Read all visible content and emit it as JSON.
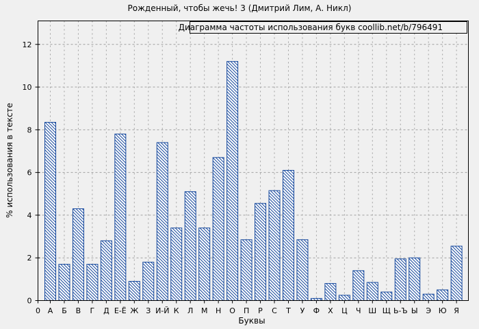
{
  "page": {
    "background": "#f0f0f0"
  },
  "colors": {
    "bar_outline": "#17499d",
    "bar_fill": "#ffffff",
    "grid": "#a0a0a0",
    "axis": "#000000",
    "text": "#000000"
  },
  "legend": {
    "label": "Диаграмма частоты использования букв coollib.net/b/796491",
    "position": "top-right",
    "boxed": true
  },
  "chart_data": {
    "type": "bar",
    "title": "Рожденный, чтобы жечь! 3 (Дмитрий Лим, А. Никл)",
    "xlabel": "Буквы",
    "ylabel": "% использования в тексте",
    "legend_label": "Диаграмма частоты использования букв coollib.net/b/796491",
    "legend_position": "top-right",
    "grid": true,
    "hatch": "diagonal-backslash",
    "origin_tick_label": "0",
    "categories": [
      "А",
      "Б",
      "В",
      "Г",
      "Д",
      "Е-Ё",
      "Ж",
      "З",
      "И-Й",
      "К",
      "Л",
      "М",
      "Н",
      "О",
      "П",
      "Р",
      "С",
      "Т",
      "У",
      "Ф",
      "Х",
      "Ц",
      "Ч",
      "Ш",
      "Щ",
      "Ь-Ъ",
      "Ы",
      "Э",
      "Ю",
      "Я"
    ],
    "values": [
      8.35,
      1.7,
      4.3,
      1.7,
      2.8,
      7.8,
      0.9,
      1.8,
      7.4,
      3.4,
      5.1,
      3.4,
      6.7,
      11.2,
      2.85,
      4.55,
      5.15,
      6.1,
      2.85,
      0.1,
      0.8,
      0.25,
      1.4,
      0.85,
      0.4,
      1.95,
      2.0,
      0.3,
      0.5,
      2.55
    ],
    "yticks": [
      0,
      2,
      4,
      6,
      8,
      10,
      12
    ],
    "ylim": [
      0,
      13.1
    ]
  }
}
